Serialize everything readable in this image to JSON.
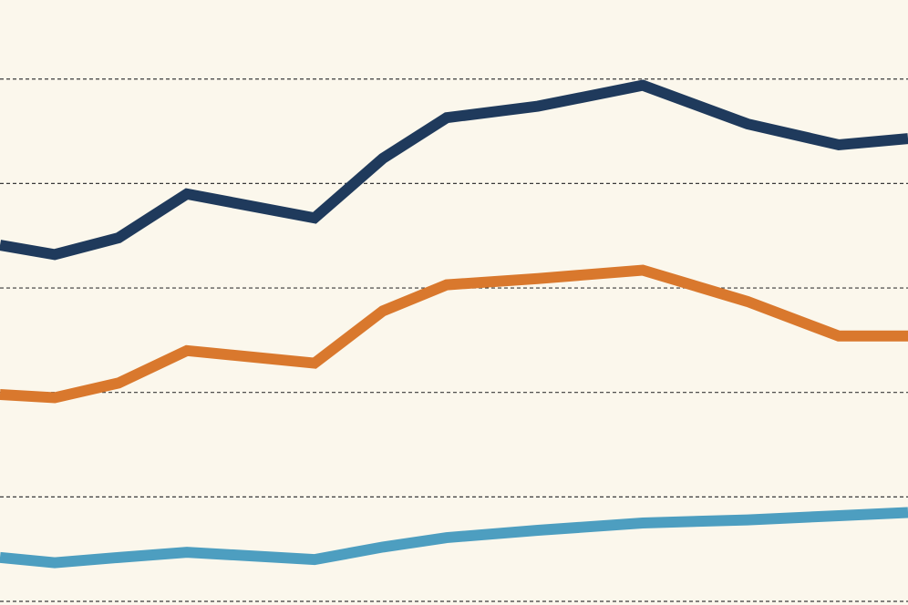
{
  "chart_data": {
    "type": "line",
    "x": [
      0,
      60,
      130,
      205,
      345,
      420,
      490,
      590,
      705,
      820,
      920,
      996
    ],
    "xlim": [
      0,
      996
    ],
    "ylim": [
      0,
      5.75
    ],
    "yticks": [
      0,
      1,
      2,
      3,
      4,
      5
    ],
    "grid": true,
    "series": [
      {
        "color": "#1f3a5c",
        "values": [
          3.41,
          3.32,
          3.48,
          3.9,
          3.67,
          4.24,
          4.63,
          4.74,
          4.94,
          4.57,
          4.37,
          4.43
        ]
      },
      {
        "color": "#d9782d",
        "values": [
          1.98,
          1.95,
          2.09,
          2.4,
          2.28,
          2.78,
          3.03,
          3.09,
          3.17,
          2.87,
          2.54,
          2.54
        ]
      },
      {
        "color": "#4d9ec0",
        "values": [
          0.42,
          0.37,
          0.42,
          0.47,
          0.4,
          0.52,
          0.61,
          0.68,
          0.75,
          0.78,
          0.82,
          0.85
        ]
      }
    ]
  }
}
